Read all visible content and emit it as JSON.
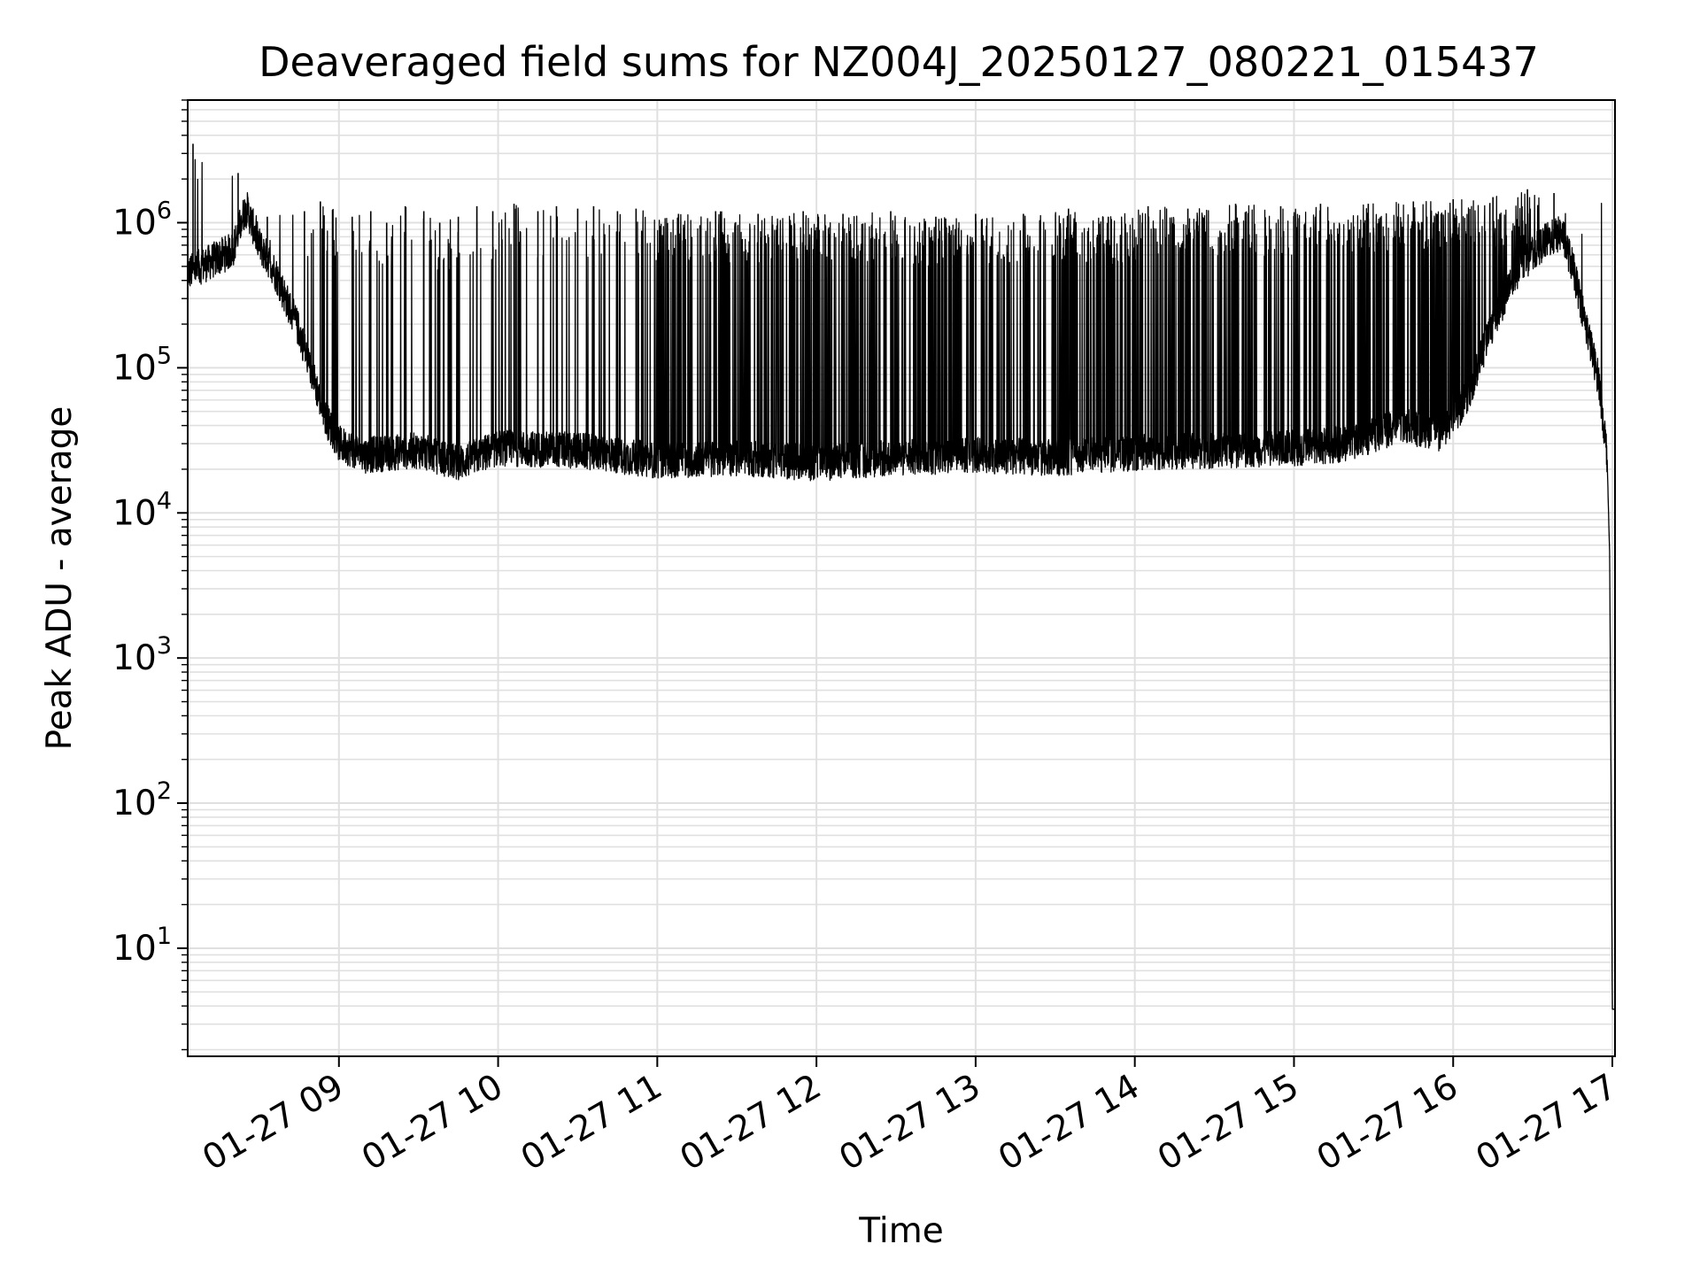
{
  "chart_data": {
    "type": "line",
    "title": "Deaveraged field sums for NZ004J_20250127_080221_015437",
    "xlabel": "Time",
    "ylabel": "Peak ADU - average",
    "yscale": "log",
    "grid": true,
    "line_color": "#000000",
    "grid_color": "#e0e0e0",
    "xlim": [
      "01-27 08:03",
      "01-27 17:01"
    ],
    "ylim": [
      1.8,
      7000000
    ],
    "x_ticks": [
      "01-27 09",
      "01-27 10",
      "01-27 11",
      "01-27 12",
      "01-27 13",
      "01-27 14",
      "01-27 15",
      "01-27 16",
      "01-27 17"
    ],
    "y_ticks": [
      {
        "base": "10",
        "exp": "1",
        "value": 10
      },
      {
        "base": "10",
        "exp": "2",
        "value": 100
      },
      {
        "base": "10",
        "exp": "3",
        "value": 1000
      },
      {
        "base": "10",
        "exp": "4",
        "value": 10000
      },
      {
        "base": "10",
        "exp": "5",
        "value": 100000
      },
      {
        "base": "10",
        "exp": "6",
        "value": 1000000
      }
    ],
    "series": [
      {
        "baseline": {
          "x": [
            "01-27 08:03",
            "01-27 08:10",
            "01-27 08:20",
            "01-27 08:25",
            "01-27 08:30",
            "01-27 08:35",
            "01-27 08:40",
            "01-27 08:45",
            "01-27 08:50",
            "01-27 08:55",
            "01-27 09:00",
            "01-27 09:10",
            "01-27 09:30",
            "01-27 09:45",
            "01-27 10:00",
            "01-27 10:30",
            "01-27 11:00",
            "01-27 11:30",
            "01-27 12:00",
            "01-27 12:30",
            "01-27 13:00",
            "01-27 13:30",
            "01-27 14:00",
            "01-27 14:30",
            "01-27 15:00",
            "01-27 15:20",
            "01-27 15:40",
            "01-27 15:55",
            "01-27 16:05",
            "01-27 16:15",
            "01-27 16:25",
            "01-27 16:35",
            "01-27 16:41",
            "01-27 16:45",
            "01-27 16:50",
            "01-27 16:55",
            "01-27 16:58",
            "01-27 16:59",
            "01-27 17:00",
            "01-27 17:01"
          ],
          "y": [
            450000,
            520000,
            650000,
            1300000,
            700000,
            500000,
            300000,
            180000,
            90000,
            45000,
            30000,
            25000,
            27000,
            22000,
            28000,
            27000,
            23000,
            24000,
            22000,
            24000,
            25000,
            24000,
            26000,
            27000,
            28000,
            30000,
            40000,
            35000,
            60000,
            200000,
            500000,
            750000,
            850000,
            500000,
            200000,
            80000,
            25000,
            5000,
            3.8,
            3.8
          ]
        },
        "spikes": {
          "x": [
            "01-27 08:05",
            "01-27 08:22",
            "01-27 08:33",
            "01-27 08:47",
            "01-27 08:53",
            "01-27 09:05",
            "01-27 09:12",
            "01-27 09:18",
            "01-27 09:25",
            "01-27 09:32",
            "01-27 09:38",
            "01-27 09:45",
            "01-27 09:52",
            "01-27 09:58",
            "01-27 10:06",
            "01-27 10:15",
            "01-27 10:22",
            "01-27 10:30",
            "01-27 10:36",
            "01-27 10:45",
            "01-27 10:52",
            "01-27 11:08",
            "01-27 11:22",
            "01-27 11:38",
            "01-27 11:55",
            "01-27 12:10",
            "01-27 12:28",
            "01-27 12:45",
            "01-27 13:00",
            "01-27 13:18",
            "01-27 13:35",
            "01-27 13:50",
            "01-27 14:05",
            "01-27 14:20",
            "01-27 14:38",
            "01-27 14:55",
            "01-27 15:10",
            "01-27 15:28",
            "01-27 15:45",
            "01-27 16:00",
            "01-27 16:15",
            "01-27 16:28",
            "01-27 16:38"
          ],
          "y": [
            3500000,
            2200000,
            1100000,
            1200000,
            1400000,
            1100000,
            1200000,
            1000000,
            1300000,
            1200000,
            1000000,
            1100000,
            1300000,
            1200000,
            1350000,
            1200000,
            1300000,
            1250000,
            1300000,
            1200000,
            1250000,
            1150000,
            1200000,
            1150000,
            1200000,
            1150000,
            1200000,
            1100000,
            1150000,
            1150000,
            1250000,
            1100000,
            1300000,
            1250000,
            1350000,
            1300000,
            1350000,
            1350000,
            1400000,
            1450000,
            1500000,
            1700000,
            1600000
          ]
        }
      }
    ]
  }
}
